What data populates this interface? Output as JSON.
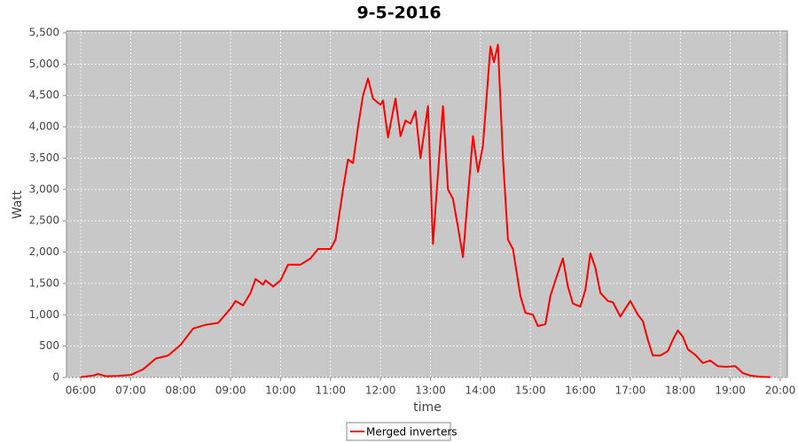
{
  "chart_data": {
    "type": "line",
    "title": "9-5-2016",
    "x_label": "time",
    "y_label": "Watt",
    "grid": true,
    "legend": "bottom",
    "xlim": [
      5.716,
      20.142
    ],
    "ylim": [
      0,
      5500
    ],
    "xticks": [
      {
        "value": 6,
        "label": "06:00"
      },
      {
        "value": 7,
        "label": "07:00"
      },
      {
        "value": 8,
        "label": "08:00"
      },
      {
        "value": 9,
        "label": "09:00"
      },
      {
        "value": 10,
        "label": "10:00"
      },
      {
        "value": 11,
        "label": "11:00"
      },
      {
        "value": 12,
        "label": "12:00"
      },
      {
        "value": 13,
        "label": "13:00"
      },
      {
        "value": 14,
        "label": "14:00"
      },
      {
        "value": 15,
        "label": "15:00"
      },
      {
        "value": 16,
        "label": "16:00"
      },
      {
        "value": 17,
        "label": "17:00"
      },
      {
        "value": 18,
        "label": "18:00"
      },
      {
        "value": 19,
        "label": "19:00"
      },
      {
        "value": 20,
        "label": "20:00"
      }
    ],
    "yticks": [
      0,
      500,
      {
        "value": 1000,
        "label": "1,000"
      },
      {
        "value": 1500,
        "label": "1,500"
      },
      {
        "value": 2000,
        "label": "2,000"
      },
      {
        "value": 2500,
        "label": "2,500"
      },
      {
        "value": 3000,
        "label": "3,000"
      },
      {
        "value": 3500,
        "label": "3,500"
      },
      {
        "value": 4000,
        "label": "4,000"
      },
      {
        "value": 4500,
        "label": "4,500"
      },
      {
        "value": 5000,
        "label": "5,000"
      },
      {
        "value": 5500,
        "label": "5,500"
      }
    ],
    "x": [
      6.0,
      6.25,
      6.35,
      6.5,
      6.75,
      7.0,
      7.25,
      7.5,
      7.75,
      8.0,
      8.25,
      8.5,
      8.75,
      9.0,
      9.1,
      9.25,
      9.4,
      9.5,
      9.65,
      9.7,
      9.85,
      10.0,
      10.15,
      10.4,
      10.6,
      10.75,
      11.0,
      11.1,
      11.25,
      11.35,
      11.45,
      11.55,
      11.65,
      11.75,
      11.85,
      12.0,
      12.05,
      12.15,
      12.3,
      12.4,
      12.5,
      12.6,
      12.7,
      12.8,
      12.95,
      13.05,
      13.2,
      13.25,
      13.35,
      13.45,
      13.55,
      13.65,
      13.75,
      13.85,
      13.95,
      14.05,
      14.2,
      14.27,
      14.35,
      14.45,
      14.55,
      14.65,
      14.8,
      14.9,
      15.05,
      15.15,
      15.3,
      15.4,
      15.5,
      15.65,
      15.75,
      15.85,
      16.0,
      16.1,
      16.2,
      16.3,
      16.4,
      16.55,
      16.65,
      16.8,
      16.9,
      17.0,
      17.15,
      17.25,
      17.35,
      17.45,
      17.6,
      17.75,
      17.85,
      17.95,
      18.05,
      18.15,
      18.3,
      18.45,
      18.6,
      18.75,
      18.9,
      19.1,
      19.25,
      19.4,
      19.6,
      19.8
    ],
    "series": [
      {
        "name": "Merged inverters",
        "color": "#ff0000",
        "values": [
          5,
          30,
          55,
          20,
          25,
          40,
          130,
          300,
          350,
          520,
          780,
          840,
          870,
          1100,
          1220,
          1150,
          1350,
          1570,
          1480,
          1550,
          1450,
          1550,
          1800,
          1800,
          1900,
          2050,
          2050,
          2200,
          3000,
          3480,
          3420,
          4000,
          4500,
          4770,
          4450,
          4350,
          4420,
          3830,
          4450,
          3850,
          4100,
          4050,
          4250,
          3500,
          4330,
          2130,
          3800,
          4330,
          3000,
          2850,
          2400,
          1920,
          2900,
          3850,
          3280,
          3700,
          5280,
          5030,
          5310,
          3500,
          2200,
          2050,
          1300,
          1030,
          1000,
          820,
          850,
          1300,
          1550,
          1900,
          1450,
          1180,
          1130,
          1400,
          1980,
          1750,
          1350,
          1220,
          1200,
          970,
          1100,
          1220,
          1000,
          900,
          600,
          350,
          350,
          420,
          600,
          750,
          650,
          450,
          360,
          230,
          270,
          180,
          170,
          180,
          70,
          30,
          10,
          5
        ]
      }
    ]
  }
}
